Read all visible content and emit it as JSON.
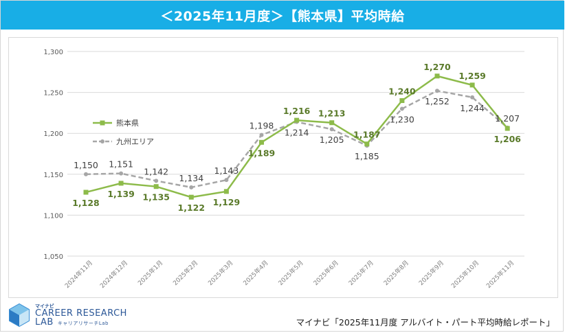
{
  "header": {
    "title": "＜2025年11月度＞【熊本県】平均時給"
  },
  "footer": {
    "logo_top": "マイナビ",
    "logo_main_1": "CAREER RESEARCH",
    "logo_main_2": "LAB",
    "logo_jp": "キャリアリサーチLab",
    "source": "マイナビ「2025年11月度 アルバイト・パート平均時給レポート」"
  },
  "colors": {
    "banner": "#18aee6",
    "kumamoto": "#8dbb4a",
    "kyushu": "#a6a6a6",
    "grid": "#d9d9d9",
    "kumamoto_label": "#5a7a2a",
    "kyushu_label": "#404040"
  },
  "chart_data": {
    "type": "line",
    "title": "",
    "xlabel": "",
    "ylabel": "",
    "ylim": [
      1050,
      1300
    ],
    "yticks": [
      1050,
      1100,
      1150,
      1200,
      1250,
      1300
    ],
    "ytick_labels": [
      "1,050",
      "1,100",
      "1,150",
      "1,200",
      "1,250",
      "1,300"
    ],
    "grid": true,
    "legend": "left",
    "categories": [
      "2024年11月",
      "2024年12月",
      "2025年1月",
      "2025年2月",
      "2025年3月",
      "2025年4月",
      "2025年5月",
      "2025年6月",
      "2025年7月",
      "2025年8月",
      "2025年9月",
      "2025年10月",
      "2025年11月"
    ],
    "series": [
      {
        "name": "熊本県",
        "values": [
          1128,
          1139,
          1135,
          1122,
          1129,
          1189,
          1216,
          1213,
          1187,
          1240,
          1270,
          1259,
          1206
        ],
        "labels": [
          "1,128",
          "1,139",
          "1,135",
          "1,122",
          "1,129",
          "1,189",
          "1,216",
          "1,213",
          "1,187",
          "1,240",
          "1,270",
          "1,259",
          "1,206"
        ]
      },
      {
        "name": "九州エリア",
        "values": [
          1150,
          1151,
          1142,
          1134,
          1143,
          1198,
          1214,
          1205,
          1185,
          1230,
          1252,
          1244,
          1207
        ],
        "labels": [
          "1,150",
          "1,151",
          "1,142",
          "1,134",
          "1,143",
          "1,198",
          "1,214",
          "1,205",
          "1,185",
          "1,230",
          "1,252",
          "1,244",
          "1,207"
        ]
      }
    ]
  }
}
